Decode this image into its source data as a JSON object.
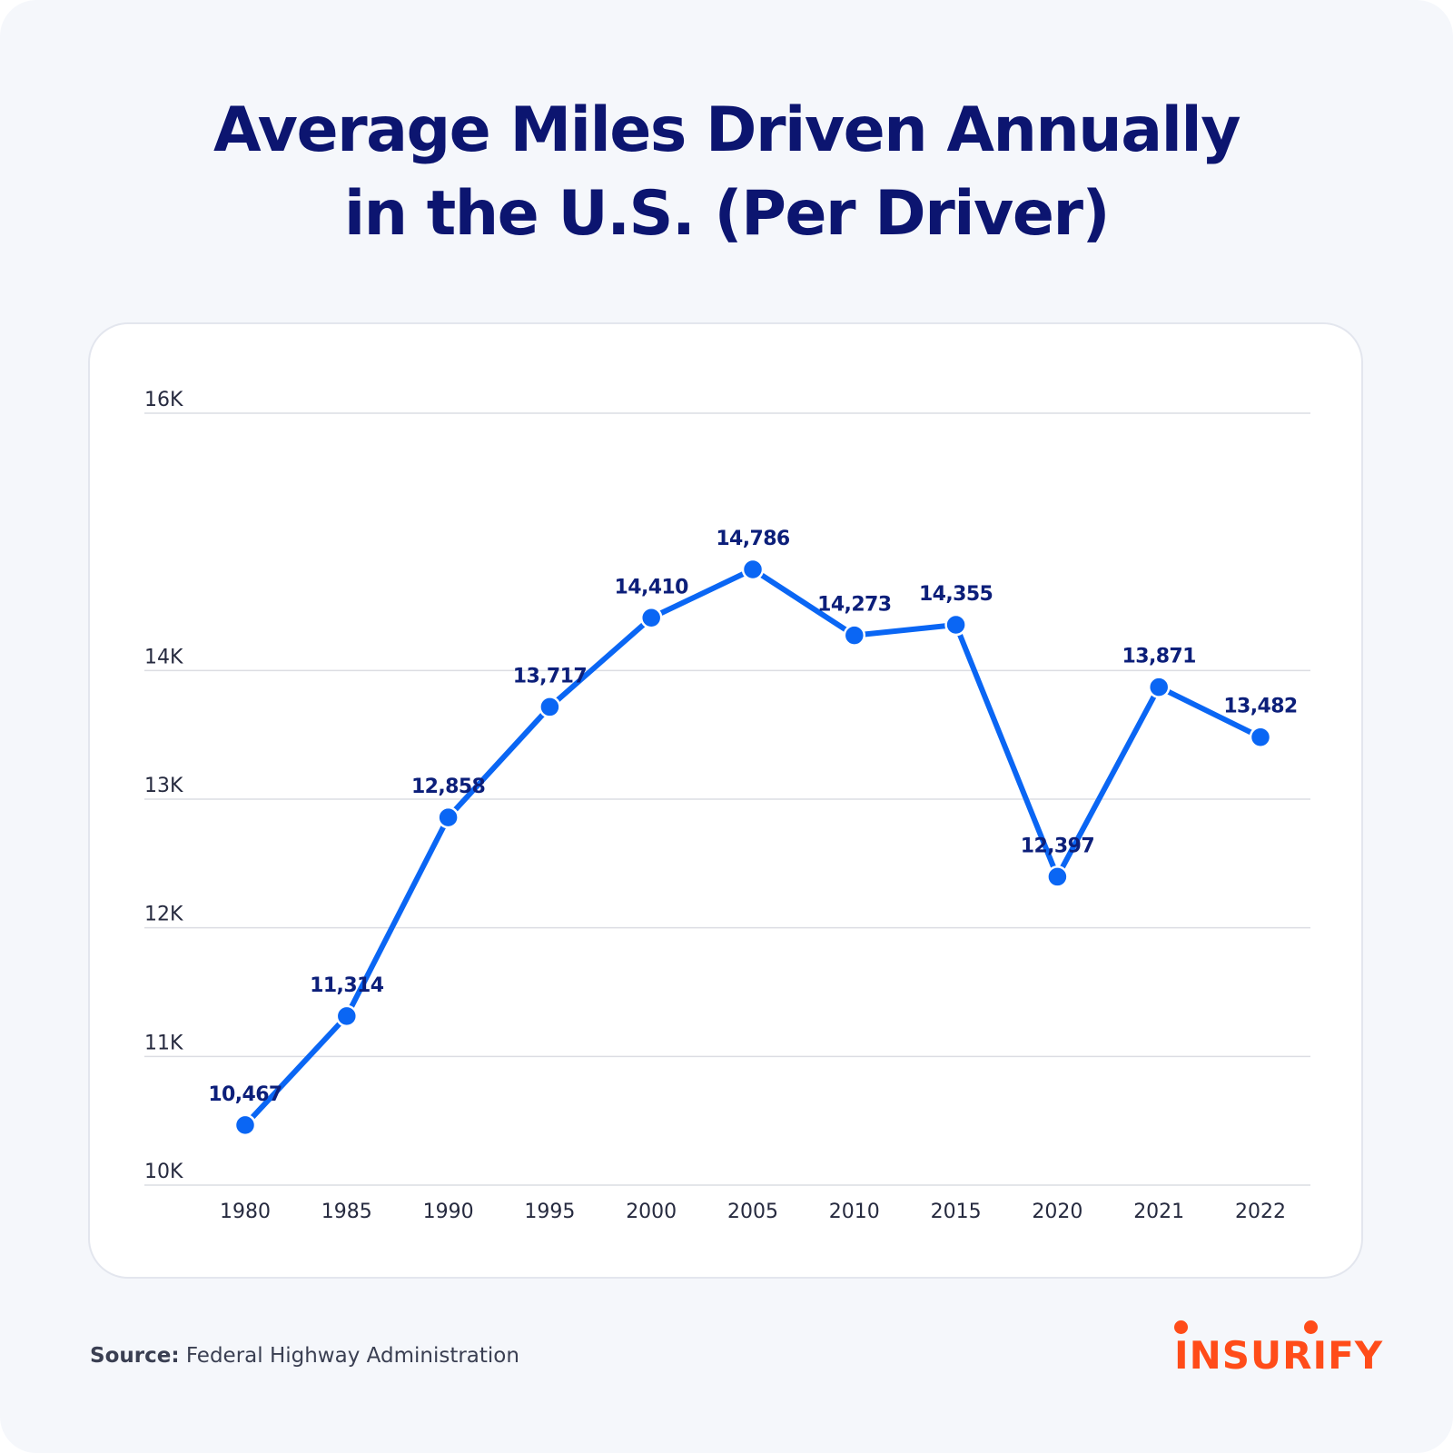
{
  "title": {
    "line1": "Average Miles Driven Annually",
    "line2": "in the U.S. (Per Driver)"
  },
  "chart_data": {
    "type": "line",
    "title": "Average Miles Driven Annually in the U.S. (Per Driver)",
    "xlabel": "",
    "ylabel": "",
    "categories": [
      "1980",
      "1985",
      "1990",
      "1995",
      "2000",
      "2005",
      "2010",
      "2015",
      "2020",
      "2021",
      "2022"
    ],
    "series": [
      {
        "values": [
          10467,
          11314,
          12858,
          13717,
          14410,
          14786,
          14273,
          14355,
          12397,
          13871,
          13482
        ],
        "labels": [
          "10,467",
          "11,314",
          "12,858",
          "13,717",
          "14,410",
          "14,786",
          "14,273",
          "14,355",
          "12,397",
          "13,871",
          "13,482"
        ],
        "color": "#0a66f4"
      }
    ],
    "y_ticks": [
      {
        "value": 10000,
        "label": "10K"
      },
      {
        "value": 11000,
        "label": "11K"
      },
      {
        "value": 12000,
        "label": "12K"
      },
      {
        "value": 13000,
        "label": "13K"
      },
      {
        "value": 14000,
        "label": "14K"
      },
      {
        "value": 16000,
        "label": "16K"
      }
    ],
    "ylim": [
      10000,
      16000
    ],
    "grid": true,
    "legend": "none"
  },
  "source": {
    "label": "Source:",
    "text": " Federal Highway Administration"
  },
  "logo": {
    "text": "INSURIFY",
    "color": "#ff4c19"
  },
  "colors": {
    "title": "#0c1570",
    "line": "#0a66f4",
    "data_label": "#0c1f7a",
    "background": "#f5f7fb",
    "card": "#ffffff"
  }
}
